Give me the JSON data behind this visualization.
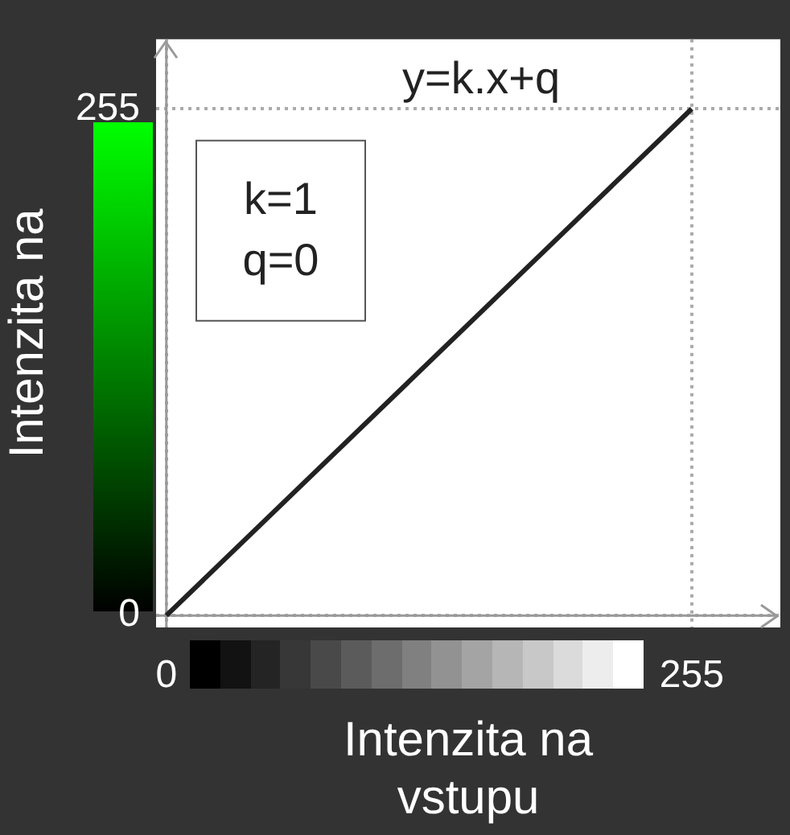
{
  "chart_data": {
    "type": "line",
    "title": "y=k.x+q",
    "xlabel": "Intenzita na vstupu",
    "ylabel": "Intenzita na",
    "x": [
      0,
      255
    ],
    "series": [
      {
        "color": "#222222",
        "values": [
          0,
          255
        ]
      }
    ],
    "xlim": [
      -5,
      298
    ],
    "ylim": [
      -6,
      290
    ],
    "xticks": [
      0,
      255
    ],
    "yticks": [
      0,
      255
    ],
    "annotations": [
      "k=1",
      "q=0"
    ],
    "grid": true,
    "legend": false,
    "marker": "none",
    "line_style": "solid"
  }
}
